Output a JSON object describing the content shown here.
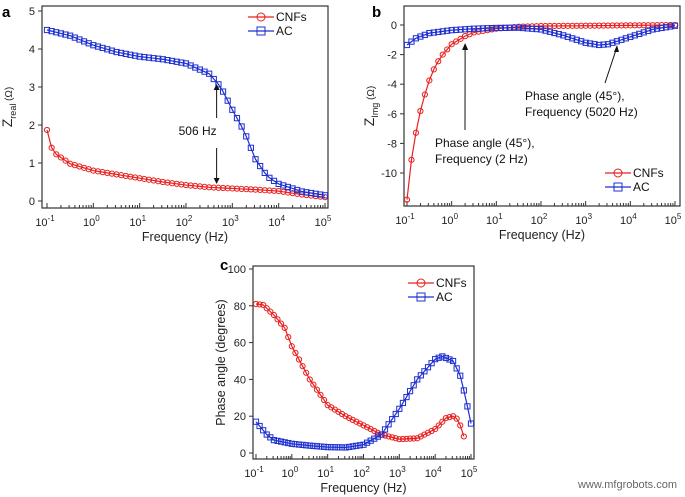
{
  "watermark": "www.mfgrobots.com",
  "colors": {
    "CNFs": "#e8201f",
    "AC": "#1d2fd0"
  },
  "chart_data": [
    {
      "panel": "a",
      "type": "line",
      "xscale": "log",
      "xlabel": "Frequency (Hz)",
      "ylabel_main": "Z",
      "ylabel_sub": "real",
      "ylabel_unit": " (Ω)",
      "xlim": [
        0.1,
        100000
      ],
      "ylim": [
        0,
        5
      ],
      "xticks": [
        {
          "v": 0.1,
          "b": "10",
          "e": "-1"
        },
        {
          "v": 1,
          "b": "10",
          "e": "0"
        },
        {
          "v": 10,
          "b": "10",
          "e": "1"
        },
        {
          "v": 100,
          "b": "10",
          "e": "2"
        },
        {
          "v": 1000,
          "b": "10",
          "e": "3"
        },
        {
          "v": 10000,
          "b": "10",
          "e": "4"
        },
        {
          "v": 100000,
          "b": "10",
          "e": "5"
        }
      ],
      "yticks": [
        "0",
        "1",
        "2",
        "3",
        "4",
        "5"
      ],
      "legend": "top-right",
      "series": [
        {
          "name": "CNFs",
          "marker": "circle",
          "x": [
            0.1,
            0.126,
            0.158,
            0.316,
            1,
            3.16,
            10,
            31.6,
            100,
            316,
            1000,
            3160,
            10000,
            31600,
            100000
          ],
          "y": [
            1.87,
            1.4,
            1.23,
            0.98,
            0.8,
            0.7,
            0.6,
            0.5,
            0.42,
            0.36,
            0.33,
            0.3,
            0.26,
            0.17,
            0.1
          ]
        },
        {
          "name": "AC",
          "marker": "square",
          "x": [
            0.1,
            0.316,
            1,
            3.16,
            10,
            31.6,
            100,
            316,
            562,
            1000,
            1780,
            3160,
            5620,
            10000,
            31600,
            100000
          ],
          "y": [
            4.5,
            4.35,
            4.1,
            3.92,
            3.8,
            3.73,
            3.62,
            3.35,
            3.0,
            2.4,
            1.85,
            1.1,
            0.65,
            0.45,
            0.25,
            0.15
          ]
        }
      ],
      "annotations": [
        {
          "text": "506 Hz",
          "x": 506
        }
      ]
    },
    {
      "panel": "b",
      "type": "line",
      "xscale": "log",
      "xlabel": "Frequency (Hz)",
      "ylabel_main": "Z",
      "ylabel_sub": "Img",
      "ylabel_unit": " (Ω)",
      "xlim": [
        0.1,
        100000
      ],
      "ylim": [
        -12,
        0.5
      ],
      "xticks": [
        {
          "v": 0.1,
          "b": "10",
          "e": "-1"
        },
        {
          "v": 1,
          "b": "10",
          "e": "0"
        },
        {
          "v": 10,
          "b": "10",
          "e": "1"
        },
        {
          "v": 100,
          "b": "10",
          "e": "2"
        },
        {
          "v": 1000,
          "b": "10",
          "e": "3"
        },
        {
          "v": 10000,
          "b": "10",
          "e": "4"
        },
        {
          "v": 100000,
          "b": "10",
          "e": "5"
        }
      ],
      "yticks": [
        "-10",
        "-8",
        "-6",
        "-4",
        "-2",
        "0"
      ],
      "legend": "bottom-right",
      "series": [
        {
          "name": "CNFs",
          "marker": "circle",
          "x": [
            0.1,
            0.126,
            0.158,
            0.2,
            0.251,
            0.316,
            0.398,
            0.501,
            0.631,
            1,
            2,
            3.16,
            10,
            31.6,
            100,
            1000,
            100000
          ],
          "y": [
            -11.8,
            -9.1,
            -7.3,
            -5.8,
            -4.7,
            -3.75,
            -3.0,
            -2.45,
            -2.0,
            -1.3,
            -0.75,
            -0.5,
            -0.25,
            -0.12,
            -0.07,
            -0.05,
            0
          ]
        },
        {
          "name": "AC",
          "marker": "square",
          "x": [
            0.1,
            0.158,
            0.316,
            1,
            3.16,
            10,
            31.6,
            100,
            316,
            1000,
            2000,
            3160,
            10000,
            31600,
            100000
          ],
          "y": [
            -1.35,
            -0.9,
            -0.55,
            -0.35,
            -0.25,
            -0.2,
            -0.18,
            -0.3,
            -0.7,
            -1.2,
            -1.35,
            -1.3,
            -0.8,
            -0.3,
            -0.05
          ]
        }
      ],
      "annotations": [
        {
          "line1": "Phase angle (45°),",
          "line2": "Frequency (2 Hz)",
          "x": 2
        },
        {
          "line1": "Phase angle (45°),",
          "line2": "Frequency (5020 Hz)",
          "x": 5020
        }
      ]
    },
    {
      "panel": "c",
      "type": "line",
      "xscale": "log",
      "xlabel": "Frequency (Hz)",
      "ylabel": "Phase angle (degrees)",
      "xlim": [
        0.1,
        100000
      ],
      "ylim": [
        0,
        100
      ],
      "xticks": [
        {
          "v": 0.1,
          "b": "10",
          "e": "-1"
        },
        {
          "v": 1,
          "b": "10",
          "e": "0"
        },
        {
          "v": 10,
          "b": "10",
          "e": "1"
        },
        {
          "v": 100,
          "b": "10",
          "e": "2"
        },
        {
          "v": 1000,
          "b": "10",
          "e": "3"
        },
        {
          "v": 10000,
          "b": "10",
          "e": "4"
        },
        {
          "v": 100000,
          "b": "10",
          "e": "5"
        }
      ],
      "yticks": [
        "0",
        "20",
        "40",
        "60",
        "80",
        "100"
      ],
      "legend": "top-right",
      "series": [
        {
          "name": "CNFs",
          "marker": "circle",
          "x": [
            0.1,
            0.158,
            0.316,
            0.631,
            1,
            3.16,
            10,
            31.6,
            100,
            316,
            1000,
            3160,
            10000,
            20000,
            31600,
            44700,
            63100
          ],
          "y": [
            81,
            80.5,
            75,
            68,
            58,
            40,
            26,
            20,
            15,
            10,
            7.5,
            8,
            13,
            19,
            20,
            18,
            9
          ]
        },
        {
          "name": "AC",
          "marker": "square",
          "x": [
            0.1,
            0.2,
            0.316,
            1,
            3.16,
            10,
            31.6,
            100,
            316,
            1000,
            3160,
            10000,
            15800,
            31600,
            50100,
            70800,
            100000
          ],
          "y": [
            17,
            10,
            7,
            5,
            4,
            3.2,
            3,
            4.5,
            10,
            24,
            40,
            51,
            52.5,
            50,
            42,
            30,
            16
          ]
        }
      ]
    }
  ]
}
